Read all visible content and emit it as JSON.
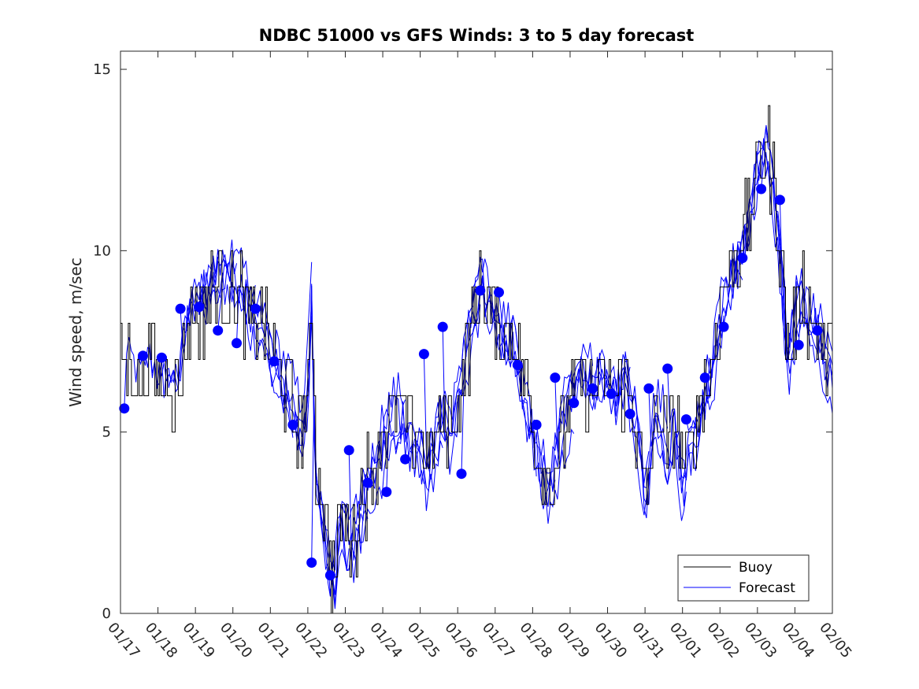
{
  "chart_data": {
    "type": "line",
    "title": "NDBC 51000 vs GFS Winds: 3 to 5 day forecast",
    "ylabel": "Wind speed, m/sec",
    "xlabel": "",
    "ylim": [
      0,
      15.5
    ],
    "yticks": [
      0,
      5,
      10,
      15
    ],
    "ytick_labels": [
      "0",
      "5",
      "10",
      "15"
    ],
    "xlim": [
      0,
      19
    ],
    "xtick_labels": [
      "01/17",
      "01/18",
      "01/19",
      "01/20",
      "01/21",
      "01/22",
      "01/23",
      "01/24",
      "01/25",
      "01/26",
      "01/27",
      "01/28",
      "01/29",
      "01/30",
      "01/31",
      "02/01",
      "02/02",
      "02/03",
      "02/04",
      "02/05"
    ],
    "legend": {
      "placement": "bottom-right",
      "entries": [
        {
          "label": "Buoy",
          "color": "#000000"
        },
        {
          "label": "Forecast",
          "color": "#0000ff"
        }
      ]
    },
    "colors": {
      "buoy": "#000000",
      "forecast": "#0000ff"
    },
    "series": [
      {
        "name": "Buoy",
        "kind": "step",
        "anchors": [
          [
            0.0,
            7
          ],
          [
            0.3,
            7
          ],
          [
            0.5,
            6.5
          ],
          [
            0.8,
            7
          ],
          [
            1.0,
            6.5
          ],
          [
            1.3,
            6.5
          ],
          [
            1.5,
            6
          ],
          [
            1.8,
            8
          ],
          [
            2.0,
            8.5
          ],
          [
            2.3,
            8.5
          ],
          [
            2.5,
            9
          ],
          [
            2.8,
            9
          ],
          [
            3.0,
            9
          ],
          [
            3.3,
            8.5
          ],
          [
            3.5,
            8
          ],
          [
            3.8,
            8
          ],
          [
            4.0,
            7
          ],
          [
            4.3,
            6.5
          ],
          [
            4.5,
            6
          ],
          [
            4.8,
            5
          ],
          [
            5.0,
            6
          ],
          [
            5.1,
            9
          ],
          [
            5.2,
            4
          ],
          [
            5.4,
            3
          ],
          [
            5.5,
            2
          ],
          [
            5.7,
            1
          ],
          [
            5.9,
            3
          ],
          [
            6.0,
            2.5
          ],
          [
            6.2,
            2
          ],
          [
            6.4,
            3
          ],
          [
            6.5,
            3.5
          ],
          [
            6.8,
            4
          ],
          [
            7.0,
            5
          ],
          [
            7.3,
            5.5
          ],
          [
            7.5,
            5.5
          ],
          [
            7.8,
            5
          ],
          [
            8.0,
            5
          ],
          [
            8.2,
            4
          ],
          [
            8.4,
            5
          ],
          [
            8.6,
            5.5
          ],
          [
            8.8,
            5
          ],
          [
            9.0,
            6
          ],
          [
            9.2,
            7
          ],
          [
            9.4,
            8
          ],
          [
            9.6,
            9
          ],
          [
            9.8,
            8.5
          ],
          [
            10.0,
            8
          ],
          [
            10.3,
            7.5
          ],
          [
            10.5,
            7.5
          ],
          [
            10.8,
            6
          ],
          [
            11.0,
            5
          ],
          [
            11.2,
            4
          ],
          [
            11.4,
            3.5
          ],
          [
            11.6,
            4
          ],
          [
            11.8,
            5
          ],
          [
            12.0,
            6
          ],
          [
            12.3,
            6.5
          ],
          [
            12.6,
            6
          ],
          [
            12.8,
            6.5
          ],
          [
            13.0,
            6
          ],
          [
            13.3,
            6
          ],
          [
            13.5,
            6.5
          ],
          [
            13.8,
            5
          ],
          [
            14.0,
            3
          ],
          [
            14.2,
            5
          ],
          [
            14.4,
            5.5
          ],
          [
            14.6,
            4.5
          ],
          [
            14.8,
            5.5
          ],
          [
            15.0,
            4
          ],
          [
            15.3,
            5
          ],
          [
            15.5,
            6
          ],
          [
            15.8,
            7
          ],
          [
            16.0,
            8.5
          ],
          [
            16.2,
            9
          ],
          [
            16.5,
            10
          ],
          [
            16.8,
            11
          ],
          [
            17.0,
            12.5
          ],
          [
            17.2,
            13
          ],
          [
            17.4,
            12
          ],
          [
            17.6,
            10
          ],
          [
            17.8,
            7
          ],
          [
            18.0,
            8
          ],
          [
            18.2,
            9
          ],
          [
            18.4,
            8
          ],
          [
            18.6,
            8
          ],
          [
            18.8,
            7
          ]
        ]
      },
      {
        "name": "Forecast",
        "kind": "markers",
        "values": [
          [
            0.1,
            5.65
          ],
          [
            0.6,
            7.1
          ],
          [
            1.1,
            7.05
          ],
          [
            1.6,
            8.4
          ],
          [
            2.1,
            8.45
          ],
          [
            2.6,
            7.8
          ],
          [
            3.1,
            7.45
          ],
          [
            3.6,
            8.4
          ],
          [
            4.1,
            6.95
          ],
          [
            4.6,
            5.2
          ],
          [
            5.1,
            1.4
          ],
          [
            5.6,
            1.05
          ],
          [
            6.1,
            4.5
          ],
          [
            6.6,
            3.6
          ],
          [
            7.1,
            3.35
          ],
          [
            7.6,
            4.25
          ],
          [
            8.1,
            7.15
          ],
          [
            8.6,
            7.9
          ],
          [
            9.1,
            3.85
          ],
          [
            9.6,
            8.9
          ],
          [
            10.1,
            8.85
          ],
          [
            10.6,
            6.85
          ],
          [
            11.1,
            5.2
          ],
          [
            11.6,
            6.5
          ],
          [
            12.1,
            5.8
          ],
          [
            12.6,
            6.2
          ],
          [
            13.1,
            6.05
          ],
          [
            13.6,
            5.5
          ],
          [
            14.1,
            6.2
          ],
          [
            14.6,
            6.75
          ],
          [
            15.1,
            5.35
          ],
          [
            15.6,
            6.5
          ],
          [
            16.1,
            7.9
          ],
          [
            16.6,
            9.8
          ],
          [
            17.1,
            11.7
          ],
          [
            17.6,
            11.4
          ],
          [
            18.1,
            7.4
          ],
          [
            18.6,
            7.8
          ]
        ]
      }
    ]
  }
}
